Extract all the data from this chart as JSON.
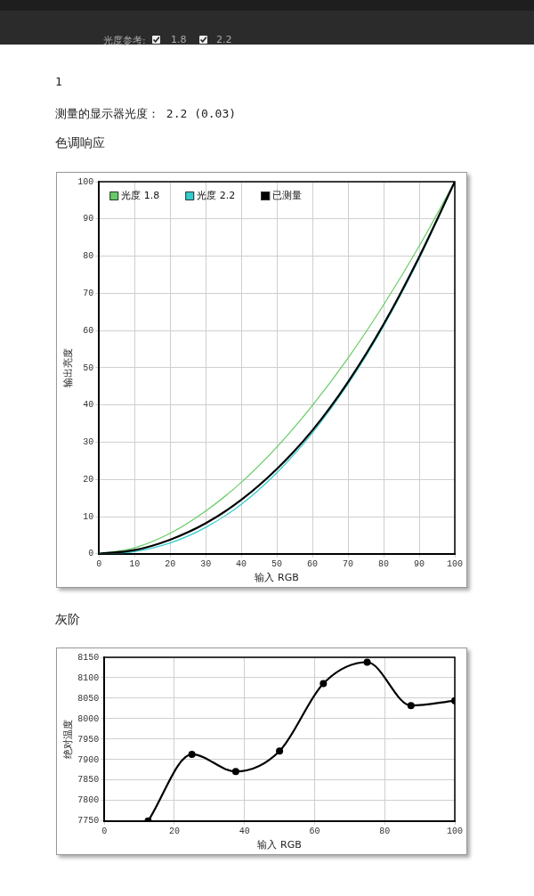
{
  "chart_data": [
    {
      "type": "line",
      "title": "色调响应",
      "xlabel": "输入 RGB",
      "ylabel": "输出亮度",
      "annotations": [
        "光度参考:",
        "1.8",
        "2.2",
        "1",
        "测量的显示器光度： 2.2 (0.03)"
      ],
      "x": [
        0,
        10,
        20,
        30,
        40,
        50,
        60,
        70,
        80,
        90,
        100
      ],
      "series": [
        {
          "name": "光度 1.8",
          "color": "#66cc66",
          "values": [
            0,
            1.6,
            5.5,
            11.5,
            19.2,
            28.7,
            39.9,
            52.6,
            66.9,
            82.7,
            100
          ]
        },
        {
          "name": "光度 2.2",
          "color": "#33cccc",
          "values": [
            0,
            0.6,
            2.9,
            7.1,
            13.3,
            21.8,
            32.5,
            45.6,
            61.2,
            79.3,
            100
          ]
        },
        {
          "name": "已测量",
          "color": "#000000",
          "values": [
            0,
            1.0,
            3.8,
            8.2,
            14.5,
            22.8,
            33.2,
            46.2,
            61.7,
            79.8,
            100
          ]
        }
      ],
      "xlim": [
        0,
        100
      ],
      "xticks": [
        0,
        10,
        20,
        30,
        40,
        50,
        60,
        70,
        80,
        90,
        100
      ],
      "ylim": [
        0,
        100
      ],
      "yticks": [
        0,
        10,
        20,
        30,
        40,
        50,
        60,
        70,
        80,
        90,
        100
      ],
      "grid": true,
      "legend": "top left",
      "marker": "none"
    },
    {
      "type": "line",
      "title": "灰阶",
      "xlabel": "输入 RGB",
      "ylabel": "绝对温度",
      "x": [
        12.5,
        25,
        37.5,
        50,
        62.5,
        75,
        87.5,
        100
      ],
      "series": [
        {
          "color": "#000000",
          "values": [
            7750,
            7913,
            7871,
            7921,
            8086,
            8138,
            8032,
            8044
          ]
        }
      ],
      "xlim": [
        0,
        100
      ],
      "xticks": [
        0,
        20,
        40,
        60,
        80,
        100
      ],
      "ylim": [
        7750,
        8150
      ],
      "yticks": [
        7750,
        7800,
        7850,
        7900,
        7950,
        8000,
        8050,
        8100,
        8150
      ],
      "grid": true,
      "marker": "circle"
    }
  ]
}
